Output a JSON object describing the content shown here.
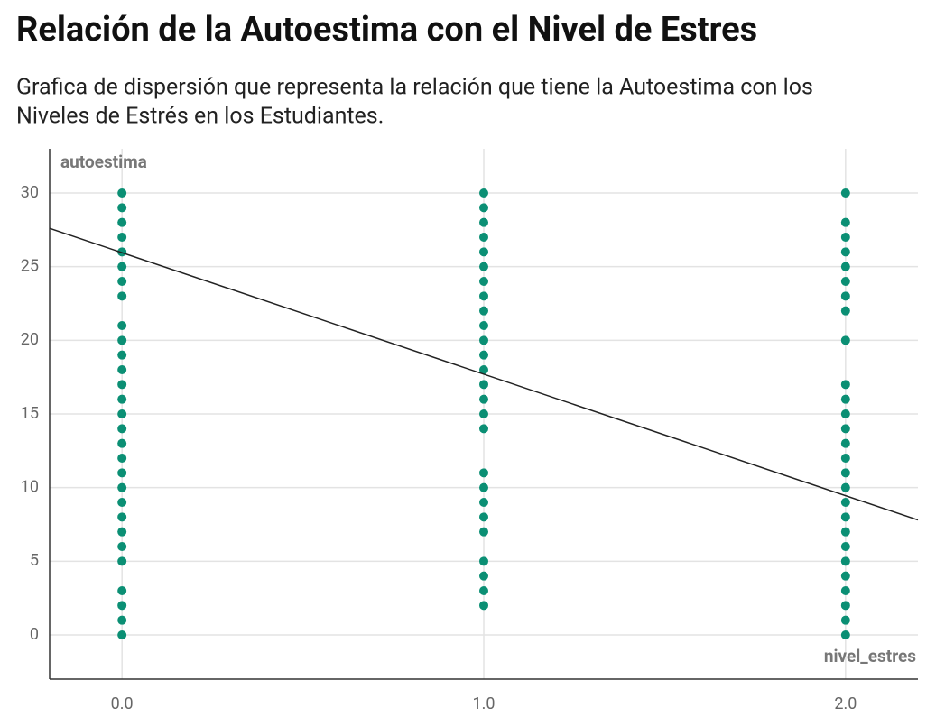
{
  "chart_data": {
    "type": "scatter",
    "title": "Relación de la Autoestima con el Nivel de Estres",
    "subtitle": [
      "Grafica de dispersión que representa la relación que tiene la Autoestima con los",
      "Niveles de Estrés en los Estudiantes."
    ],
    "x_label": "nivel_estres",
    "y_label": "autoestima",
    "color": "#0b8f74",
    "x": [
      0,
      0,
      0,
      0,
      0,
      0,
      0,
      0,
      0,
      0,
      0,
      0,
      0,
      0,
      0,
      0,
      0,
      0,
      0,
      0,
      0,
      0,
      0,
      0,
      0,
      0,
      0,
      0,
      0,
      1,
      1,
      1,
      1,
      1,
      1,
      1,
      1,
      1,
      1,
      1,
      1,
      1,
      1,
      1,
      1,
      1,
      1,
      1,
      1,
      1,
      1,
      1,
      1,
      1,
      1,
      2,
      2,
      2,
      2,
      2,
      2,
      2,
      2,
      2,
      2,
      2,
      2,
      2,
      2,
      2,
      2,
      2,
      2,
      2,
      2,
      2,
      2,
      2,
      2,
      2,
      2,
      2
    ],
    "y": [
      0,
      1,
      2,
      3,
      5,
      6,
      7,
      8,
      9,
      10,
      11,
      12,
      13,
      14,
      15,
      16,
      17,
      18,
      19,
      20,
      21,
      23,
      24,
      25,
      26,
      27,
      28,
      29,
      30,
      2,
      3,
      4,
      5,
      7,
      8,
      9,
      10,
      11,
      14,
      15,
      16,
      17,
      18,
      19,
      20,
      21,
      22,
      23,
      24,
      25,
      26,
      27,
      28,
      29,
      30,
      0,
      1,
      2,
      3,
      4,
      5,
      6,
      7,
      8,
      9,
      10,
      11,
      12,
      13,
      14,
      15,
      16,
      17,
      20,
      22,
      23,
      24,
      25,
      26,
      27,
      28,
      30
    ],
    "trendline": {
      "x": [
        -0.2,
        2.2
      ],
      "y": [
        27.6,
        7.8
      ]
    },
    "xlim": [
      -0.2,
      2.2
    ],
    "ylim": [
      -3,
      33
    ],
    "xticks": [
      {
        "value": 0,
        "label": "0.0"
      },
      {
        "value": 1,
        "label": "1.0"
      },
      {
        "value": 2,
        "label": "2.0"
      }
    ],
    "yticks": [
      0,
      5,
      10,
      15,
      20,
      25,
      30
    ],
    "grid": true
  }
}
